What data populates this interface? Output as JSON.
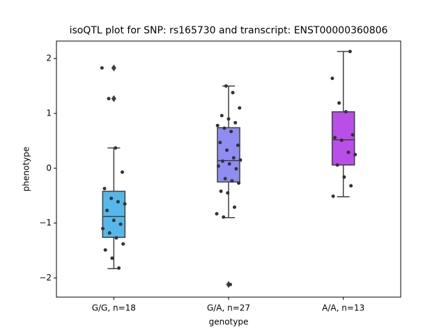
{
  "chart_data": {
    "type": "box",
    "title": "isoQTL plot for SNP: rs165730 and transcript: ENST00000360806",
    "x_label": "genotype",
    "y_label": "phenotype",
    "categories": [
      "G/G, n=18",
      "G/A, n=27",
      "A/A, n=13"
    ],
    "boxes": [
      {
        "color": "#56b8ea",
        "whislo": -1.83,
        "q1": -1.26,
        "med": -0.88,
        "q3": -0.42,
        "whishi": 0.37,
        "fliers": [
          1.83,
          1.27
        ]
      },
      {
        "color": "#8f8cf2",
        "whislo": -0.9,
        "q1": -0.25,
        "med": 0.14,
        "q3": 0.74,
        "whishi": 1.5,
        "fliers": [
          -2.12
        ]
      },
      {
        "color": "#b94ee8",
        "whislo": -0.52,
        "q1": 0.06,
        "med": 0.52,
        "q3": 1.03,
        "whishi": 2.13,
        "fliers": []
      }
    ],
    "points": [
      [
        1.83,
        1.27,
        0.37,
        -0.07,
        -0.37,
        -0.55,
        -0.61,
        -0.65,
        -0.77,
        -0.95,
        -1.02,
        -1.1,
        -1.18,
        -1.27,
        -1.38,
        -1.49,
        -1.64,
        -1.82
      ],
      [
        1.5,
        1.38,
        1.1,
        0.96,
        0.9,
        0.83,
        0.78,
        0.73,
        0.67,
        0.42,
        0.47,
        0.33,
        0.19,
        0.15,
        0.13,
        0.08,
        -0.01,
        0.04,
        -0.19,
        -0.23,
        -0.27,
        -0.42,
        -0.45,
        -0.71,
        -0.83,
        -0.89,
        -2.12
      ],
      [
        2.13,
        1.64,
        1.19,
        1.03,
        0.61,
        0.56,
        0.51,
        0.29,
        0.25,
        0.06,
        -0.16,
        -0.32,
        -0.51
      ]
    ],
    "point_color": "#333333",
    "ylim": [
      -2.35,
      2.32
    ],
    "yticks": [
      {
        "value": -2,
        "label": "−2"
      },
      {
        "value": -1,
        "label": "−1"
      },
      0,
      1,
      2
    ]
  }
}
